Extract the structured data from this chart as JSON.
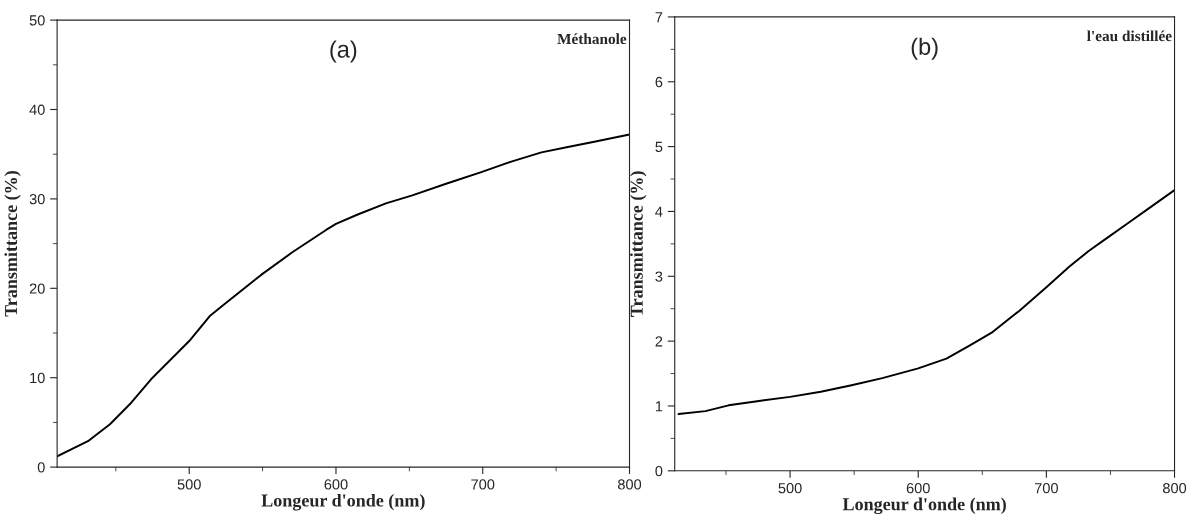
{
  "chart_data": [
    {
      "type": "line",
      "xlabel": "Longeur d'onde (nm)",
      "ylabel": "Transmittance (%)",
      "annotations": [
        "(a)",
        "Méthanole"
      ],
      "xlim": [
        410,
        800
      ],
      "xticks": [
        500,
        600,
        700,
        800
      ],
      "ylim": [
        0,
        50
      ],
      "yticks": [
        0,
        10,
        20,
        30,
        40,
        50
      ],
      "grid": false,
      "legend": false,
      "series": [
        {
          "color": "#000000",
          "x": [
            410,
            431,
            446,
            460.5,
            475,
            500,
            514,
            525.4,
            549,
            570,
            593,
            600,
            614,
            634,
            652,
            675,
            699,
            720,
            740,
            758,
            776,
            800
          ],
          "values": [
            1.2,
            2.9,
            4.8,
            7.2,
            10.0,
            14.1,
            16.9,
            18.4,
            21.5,
            24.0,
            26.5,
            27.2,
            28.2,
            29.5,
            30.4,
            31.7,
            33.0,
            34.2,
            35.2,
            35.8,
            36.4,
            37.2
          ]
        }
      ]
    },
    {
      "type": "line",
      "xlabel": "Longeur d'onde (nm)",
      "ylabel": "Transmittance (%)",
      "annotations": [
        "(b)",
        "l'eau distillée"
      ],
      "xlim": [
        410,
        800
      ],
      "xticks": [
        500,
        600,
        700,
        800
      ],
      "ylim": [
        0,
        7
      ],
      "yticks": [
        0,
        1,
        2,
        3,
        4,
        5,
        6,
        7
      ],
      "grid": false,
      "legend": false,
      "series": [
        {
          "color": "#000000",
          "x": [
            413,
            434,
            452,
            473,
            500,
            524,
            548,
            572,
            600,
            622,
            640,
            658,
            679,
            700,
            718,
            733,
            748,
            763,
            778,
            800
          ],
          "values": [
            0.875,
            0.92,
            1.01,
            1.07,
            1.14,
            1.22,
            1.32,
            1.43,
            1.58,
            1.73,
            1.93,
            2.14,
            2.47,
            2.83,
            3.15,
            3.39,
            3.6,
            3.81,
            4.02,
            4.33
          ]
        }
      ]
    }
  ]
}
